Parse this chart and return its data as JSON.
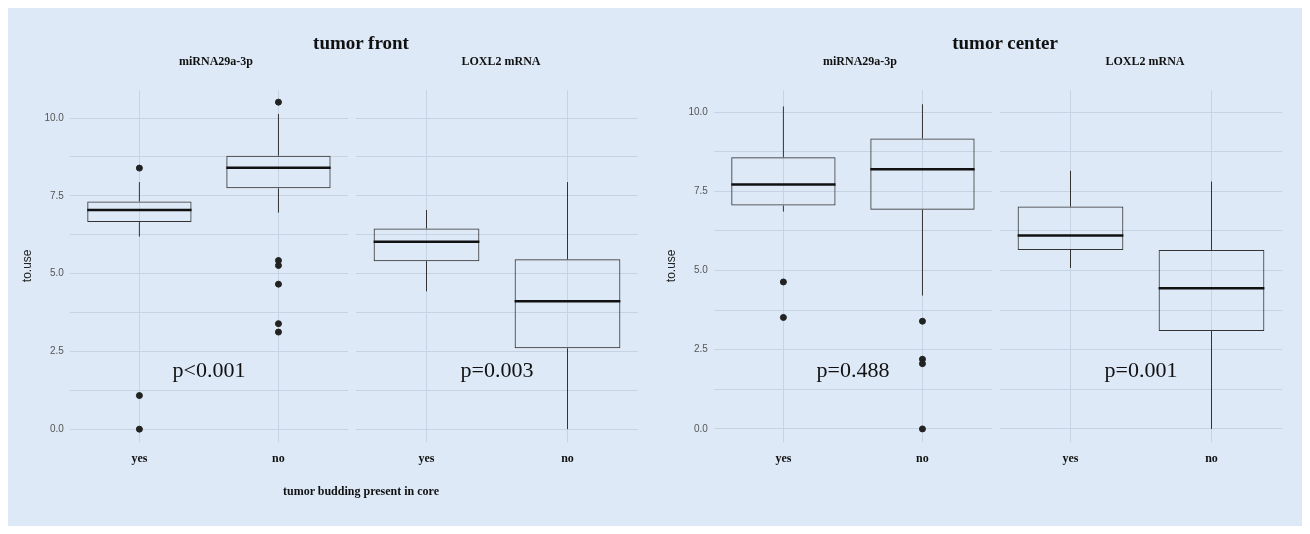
{
  "chart_data": [
    {
      "type": "box",
      "title": "tumor front",
      "subtitle": "miRNA29a-3p",
      "xlabel": "tumor budding present in core",
      "ylabel": "to.use",
      "categories": [
        "yes",
        "no"
      ],
      "boxes": [
        {
          "low": 6.19,
          "q1": 6.66,
          "median": 7.04,
          "q3": 7.32,
          "high": 7.94,
          "outliers": [
            8.39,
            1.08,
            0
          ]
        },
        {
          "low": 6.96,
          "q1": 7.74,
          "median": 8.4,
          "q3": 8.79,
          "high": 10.13,
          "outliers": [
            10.51,
            5.42,
            5.26,
            4.66,
            3.39,
            3.12
          ]
        }
      ],
      "ylim": [
        -0.4,
        10.9
      ],
      "yticks": [
        {
          "value": 0,
          "label": "0.0"
        },
        {
          "value": 1.25,
          "label": null
        },
        2.5,
        {
          "value": 3.75,
          "label": null
        },
        {
          "value": 5,
          "label": "5.0"
        },
        {
          "value": 6.25,
          "label": null
        },
        7.5,
        {
          "value": 8.75,
          "label": null
        },
        {
          "value": 10,
          "label": "10.0"
        }
      ],
      "grid": true,
      "annotations": [
        "p<0.001"
      ]
    },
    {
      "type": "box",
      "subtitle": "LOXL2 mRNA",
      "categories": [
        "yes",
        "no"
      ],
      "boxes": [
        {
          "low": 4.43,
          "q1": 5.4,
          "median": 6.02,
          "q3": 6.45,
          "high": 7.04
        },
        {
          "low": 0,
          "q1": 2.6,
          "median": 4.11,
          "q3": 5.46,
          "high": 7.94
        }
      ],
      "ylim": [
        -0.4,
        10.9
      ],
      "yticks": [
        0,
        1.25,
        2.5,
        3.75,
        5,
        6.25,
        7.5,
        8.75,
        10
      ],
      "grid": true,
      "tick_labels": "x",
      "annotations": [
        "p=0.003"
      ]
    },
    {
      "type": "box",
      "title": "tumor center",
      "subtitle": "miRNA29a-3p",
      "ylabel": "to.use",
      "categories": [
        "yes",
        "no"
      ],
      "boxes": [
        {
          "low": 6.86,
          "q1": 7.05,
          "median": 7.72,
          "q3": 8.58,
          "high": 10.18,
          "outliers": [
            4.64,
            3.52
          ]
        },
        {
          "low": 4.21,
          "q1": 6.92,
          "median": 8.2,
          "q3": 9.17,
          "high": 10.25,
          "outliers": [
            3.4,
            2.2,
            2.06,
            0
          ]
        }
      ],
      "ylim": [
        -0.4,
        10.7
      ],
      "yticks": [
        {
          "value": 0,
          "label": "0.0"
        },
        {
          "value": 1.25,
          "label": null
        },
        2.5,
        {
          "value": 3.75,
          "label": null
        },
        {
          "value": 5,
          "label": "5.0"
        },
        {
          "value": 6.25,
          "label": null
        },
        7.5,
        {
          "value": 8.75,
          "label": null
        },
        {
          "value": 10,
          "label": "10.0"
        }
      ],
      "grid": true,
      "annotations": [
        "p=0.488"
      ]
    },
    {
      "type": "box",
      "subtitle": "LOXL2 mRNA",
      "categories": [
        "yes",
        "no"
      ],
      "boxes": [
        {
          "low": 5.08,
          "q1": 5.65,
          "median": 6.11,
          "q3": 7.02,
          "high": 8.15
        },
        {
          "low": 0,
          "q1": 3.09,
          "median": 4.44,
          "q3": 5.65,
          "high": 7.81
        }
      ],
      "ylim": [
        -0.4,
        10.7
      ],
      "yticks": [
        0,
        1.25,
        2.5,
        3.75,
        5,
        6.25,
        7.5,
        8.75,
        10
      ],
      "grid": true,
      "tick_labels": "x",
      "annotations": [
        "p=0.001"
      ]
    }
  ]
}
